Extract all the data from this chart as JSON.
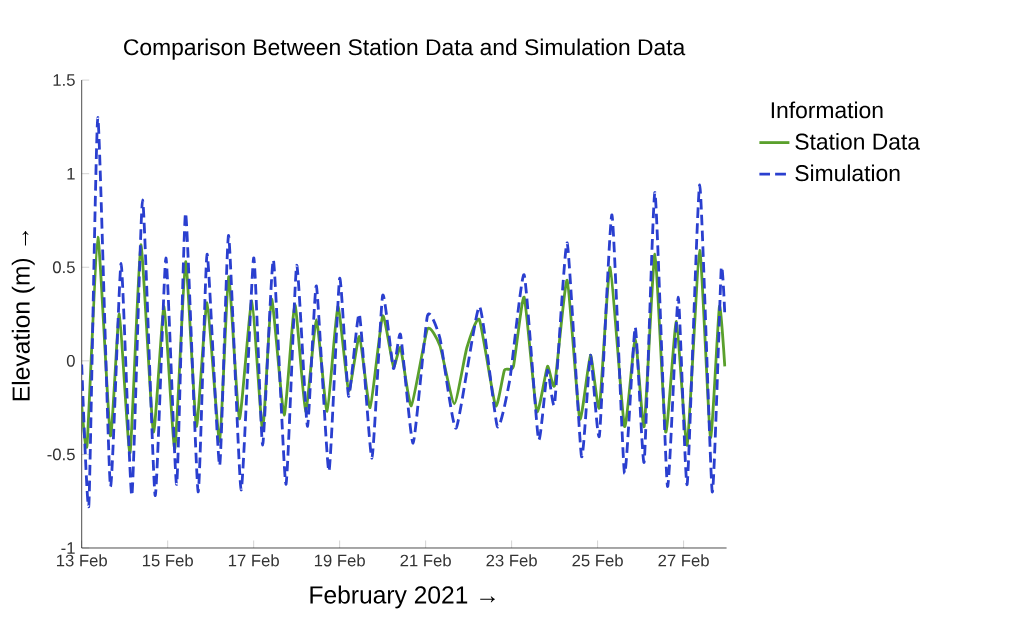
{
  "chart_data": {
    "type": "line",
    "title": "Comparison Between Station Data and Simulation Data",
    "xlabel": "February 2021 →",
    "ylabel": "Elevation (m) →",
    "legend_title": "Information",
    "legend": "right",
    "xlim": [
      "2021-02-13",
      "2021-02-28"
    ],
    "ylim": [
      -1,
      1.5
    ],
    "xticks": [
      {
        "value": "2021-02-13",
        "label": "13 Feb"
      },
      {
        "value": "2021-02-15",
        "label": "15 Feb"
      },
      {
        "value": "2021-02-17",
        "label": "17 Feb"
      },
      {
        "value": "2021-02-19",
        "label": "19 Feb"
      },
      {
        "value": "2021-02-21",
        "label": "21 Feb"
      },
      {
        "value": "2021-02-23",
        "label": "23 Feb"
      },
      {
        "value": "2021-02-25",
        "label": "25 Feb"
      },
      {
        "value": "2021-02-27",
        "label": "27 Feb"
      }
    ],
    "yticks": [
      -1,
      -0.5,
      0,
      0.5,
      1,
      1.5
    ],
    "series": [
      {
        "name": "Station Data",
        "color": "#5aa02c",
        "line_style": "solid",
        "x": [
          "2021-02-13T00:00",
          "2021-02-13T03:00",
          "2021-02-13T09:00",
          "2021-02-13T16:00",
          "2021-02-13T21:00",
          "2021-02-14T03:00",
          "2021-02-14T09:00",
          "2021-02-14T16:00",
          "2021-02-14T22:00",
          "2021-02-15T04:00",
          "2021-02-15T10:00",
          "2021-02-15T16:00",
          "2021-02-15T22:00",
          "2021-02-16T05:00",
          "2021-02-16T10:00",
          "2021-02-16T16:00",
          "2021-02-16T23:00",
          "2021-02-17T05:00",
          "2021-02-17T10:00",
          "2021-02-17T17:00",
          "2021-02-17T23:00",
          "2021-02-18T05:00",
          "2021-02-18T11:00",
          "2021-02-18T17:00",
          "2021-02-18T23:00",
          "2021-02-19T05:00",
          "2021-02-19T11:00",
          "2021-02-19T17:00",
          "2021-02-20T00:00",
          "2021-02-20T06:00",
          "2021-02-20T10:00",
          "2021-02-20T16:00",
          "2021-02-21T01:00",
          "2021-02-21T08:00",
          "2021-02-21T16:00",
          "2021-02-21T23:00",
          "2021-02-22T06:00",
          "2021-02-22T15:00",
          "2021-02-22T20:00",
          "2021-02-23T01:00",
          "2021-02-23T07:00",
          "2021-02-23T14:00",
          "2021-02-23T20:00",
          "2021-02-24T00:00",
          "2021-02-24T07:00",
          "2021-02-24T14:00",
          "2021-02-24T20:00",
          "2021-02-25T01:00",
          "2021-02-25T07:00",
          "2021-02-25T15:00",
          "2021-02-25T21:00",
          "2021-02-26T02:00",
          "2021-02-26T08:00",
          "2021-02-26T14:00",
          "2021-02-26T20:00",
          "2021-02-27T02:00",
          "2021-02-27T09:00",
          "2021-02-27T15:00",
          "2021-02-27T20:00",
          "2021-02-27T23:00"
        ],
        "values": [
          -0.24,
          -0.45,
          0.66,
          -0.4,
          0.25,
          -0.49,
          0.62,
          -0.38,
          0.29,
          -0.47,
          0.53,
          -0.35,
          0.31,
          -0.43,
          0.45,
          -0.31,
          0.32,
          -0.37,
          0.33,
          -0.29,
          0.3,
          -0.27,
          0.22,
          -0.27,
          0.29,
          -0.16,
          0.13,
          -0.25,
          0.24,
          -0.03,
          0.07,
          -0.24,
          0.17,
          0.08,
          -0.23,
          0.07,
          0.22,
          -0.24,
          -0.05,
          -0.03,
          0.34,
          -0.27,
          -0.03,
          -0.13,
          0.43,
          -0.31,
          0.03,
          -0.25,
          0.5,
          -0.35,
          0.12,
          -0.35,
          0.57,
          -0.38,
          0.21,
          -0.45,
          0.59,
          -0.41,
          0.29,
          -0.03
        ]
      },
      {
        "name": "Simulation",
        "color": "#2a3fcf",
        "line_style": "dashed",
        "x": [
          "2021-02-13T00:00",
          "2021-02-13T04:00",
          "2021-02-13T09:00",
          "2021-02-13T16:00",
          "2021-02-13T22:00",
          "2021-02-14T04:00",
          "2021-02-14T10:00",
          "2021-02-14T17:00",
          "2021-02-14T23:00",
          "2021-02-15T05:00",
          "2021-02-15T10:00",
          "2021-02-15T17:00",
          "2021-02-15T22:00",
          "2021-02-16T05:00",
          "2021-02-16T10:00",
          "2021-02-16T17:00",
          "2021-02-17T00:00",
          "2021-02-17T05:00",
          "2021-02-17T11:00",
          "2021-02-17T18:00",
          "2021-02-18T00:00",
          "2021-02-18T06:00",
          "2021-02-18T11:00",
          "2021-02-18T18:00",
          "2021-02-19T00:00",
          "2021-02-19T05:00",
          "2021-02-19T11:00",
          "2021-02-19T18:00",
          "2021-02-20T00:00",
          "2021-02-20T06:00",
          "2021-02-20T10:00",
          "2021-02-20T17:00",
          "2021-02-21T01:00",
          "2021-02-21T08:00",
          "2021-02-21T17:00",
          "2021-02-22T06:00",
          "2021-02-22T16:00",
          "2021-02-22T23:00",
          "2021-02-23T07:00",
          "2021-02-23T15:00",
          "2021-02-23T20:00",
          "2021-02-24T00:00",
          "2021-02-24T07:00",
          "2021-02-24T15:00",
          "2021-02-24T20:00",
          "2021-02-25T01:00",
          "2021-02-25T08:00",
          "2021-02-25T15:00",
          "2021-02-25T21:00",
          "2021-02-26T02:00",
          "2021-02-26T08:00",
          "2021-02-26T15:00",
          "2021-02-26T21:00",
          "2021-02-27T02:00",
          "2021-02-27T09:00",
          "2021-02-27T16:00",
          "2021-02-27T21:00",
          "2021-02-27T23:00"
        ],
        "values": [
          -0.02,
          -0.77,
          1.3,
          -0.67,
          0.52,
          -0.72,
          0.86,
          -0.72,
          0.55,
          -0.66,
          0.79,
          -0.7,
          0.57,
          -0.56,
          0.67,
          -0.69,
          0.55,
          -0.45,
          0.54,
          -0.66,
          0.51,
          -0.35,
          0.4,
          -0.59,
          0.44,
          -0.19,
          0.25,
          -0.52,
          0.35,
          -0.04,
          0.14,
          -0.44,
          0.24,
          0.12,
          -0.36,
          0.29,
          -0.35,
          -0.1,
          0.46,
          -0.42,
          -0.05,
          -0.23,
          0.63,
          -0.51,
          0.03,
          -0.4,
          0.78,
          -0.6,
          0.18,
          -0.54,
          0.9,
          -0.67,
          0.34,
          -0.66,
          0.94,
          -0.7,
          0.49,
          0.25
        ]
      }
    ]
  }
}
